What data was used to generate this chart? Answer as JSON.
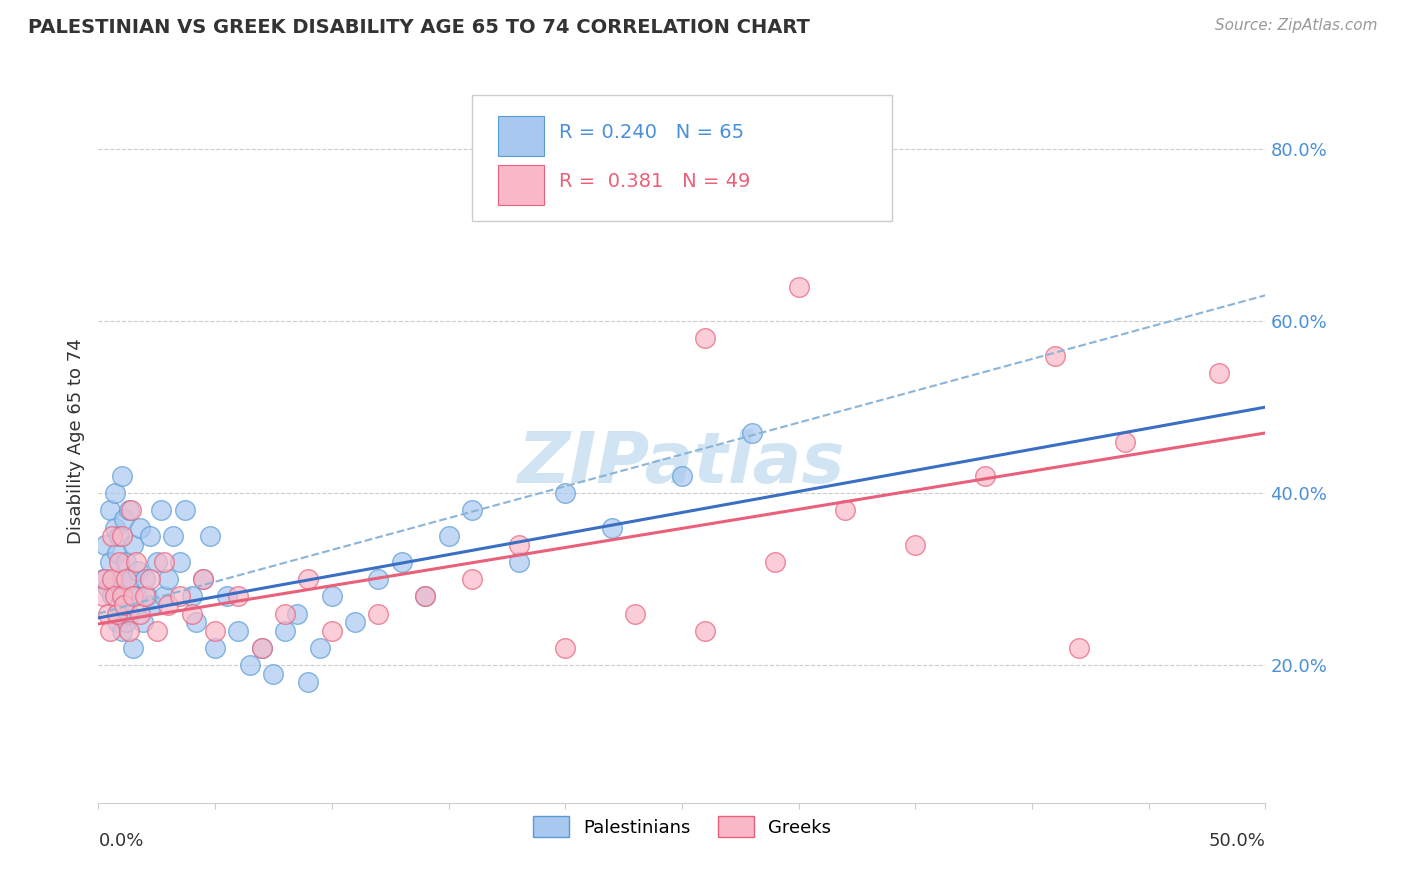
{
  "title": "PALESTINIAN VS GREEK DISABILITY AGE 65 TO 74 CORRELATION CHART",
  "source_text": "Source: ZipAtlas.com",
  "ylabel": "Disability Age 65 to 74",
  "y_tick_labels": [
    "20.0%",
    "40.0%",
    "60.0%",
    "80.0%"
  ],
  "y_tick_values": [
    0.2,
    0.4,
    0.6,
    0.8
  ],
  "xlim": [
    0.0,
    0.5
  ],
  "ylim": [
    0.04,
    0.88
  ],
  "palestinian_R": 0.24,
  "palestinian_N": 65,
  "greek_R": 0.381,
  "greek_N": 49,
  "palestinian_color": "#a8c8f0",
  "greek_color": "#f8b8c8",
  "palestinian_edge_color": "#5b9bd5",
  "greek_edge_color": "#e8607a",
  "palestinian_line_color": "#3a6fc4",
  "greek_line_color": "#e8607a",
  "dash_line_color": "#8ab4d8",
  "watermark_color": "#d0e4f4",
  "legend_label_1": "Palestinians",
  "legend_label_2": "Greeks",
  "palestinian_x": [
    0.002,
    0.003,
    0.004,
    0.005,
    0.005,
    0.006,
    0.007,
    0.007,
    0.008,
    0.008,
    0.009,
    0.009,
    0.01,
    0.01,
    0.01,
    0.011,
    0.011,
    0.012,
    0.012,
    0.013,
    0.013,
    0.014,
    0.015,
    0.015,
    0.016,
    0.017,
    0.018,
    0.019,
    0.02,
    0.021,
    0.022,
    0.023,
    0.025,
    0.027,
    0.028,
    0.03,
    0.032,
    0.035,
    0.037,
    0.04,
    0.042,
    0.045,
    0.048,
    0.05,
    0.055,
    0.06,
    0.065,
    0.07,
    0.075,
    0.08,
    0.085,
    0.09,
    0.095,
    0.1,
    0.11,
    0.12,
    0.13,
    0.14,
    0.15,
    0.16,
    0.18,
    0.2,
    0.22,
    0.25,
    0.28
  ],
  "palestinian_y": [
    0.3,
    0.34,
    0.29,
    0.32,
    0.38,
    0.28,
    0.36,
    0.4,
    0.25,
    0.33,
    0.27,
    0.35,
    0.24,
    0.3,
    0.42,
    0.28,
    0.37,
    0.25,
    0.32,
    0.26,
    0.38,
    0.3,
    0.22,
    0.34,
    0.28,
    0.31,
    0.36,
    0.25,
    0.3,
    0.28,
    0.35,
    0.27,
    0.32,
    0.38,
    0.28,
    0.3,
    0.35,
    0.32,
    0.38,
    0.28,
    0.25,
    0.3,
    0.35,
    0.22,
    0.28,
    0.24,
    0.2,
    0.22,
    0.19,
    0.24,
    0.26,
    0.18,
    0.22,
    0.28,
    0.25,
    0.3,
    0.32,
    0.28,
    0.35,
    0.38,
    0.32,
    0.4,
    0.36,
    0.42,
    0.47
  ],
  "greek_x": [
    0.002,
    0.003,
    0.004,
    0.005,
    0.006,
    0.006,
    0.007,
    0.008,
    0.009,
    0.01,
    0.01,
    0.011,
    0.012,
    0.013,
    0.014,
    0.015,
    0.016,
    0.018,
    0.02,
    0.022,
    0.025,
    0.028,
    0.03,
    0.035,
    0.04,
    0.045,
    0.05,
    0.06,
    0.07,
    0.08,
    0.09,
    0.1,
    0.12,
    0.14,
    0.16,
    0.18,
    0.2,
    0.23,
    0.26,
    0.29,
    0.32,
    0.35,
    0.38,
    0.41,
    0.44,
    0.3,
    0.26,
    0.48,
    0.42
  ],
  "greek_y": [
    0.28,
    0.3,
    0.26,
    0.24,
    0.3,
    0.35,
    0.28,
    0.26,
    0.32,
    0.28,
    0.35,
    0.27,
    0.3,
    0.24,
    0.38,
    0.28,
    0.32,
    0.26,
    0.28,
    0.3,
    0.24,
    0.32,
    0.27,
    0.28,
    0.26,
    0.3,
    0.24,
    0.28,
    0.22,
    0.26,
    0.3,
    0.24,
    0.26,
    0.28,
    0.3,
    0.34,
    0.22,
    0.26,
    0.24,
    0.32,
    0.38,
    0.34,
    0.42,
    0.56,
    0.46,
    0.64,
    0.58,
    0.54,
    0.22
  ]
}
